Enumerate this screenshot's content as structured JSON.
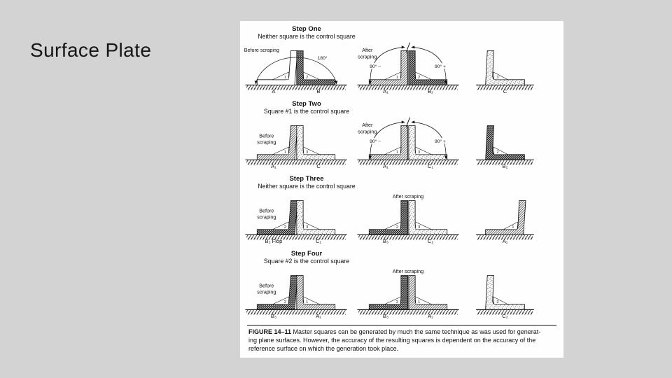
{
  "slide": {
    "title": "Surface Plate"
  },
  "colors": {
    "background": "#d3d3d3",
    "panel": "#fefefe",
    "ink": "#111111"
  },
  "figure": {
    "caption": {
      "label": "FIGURE 14–11",
      "lines": [
        "Master squares can be generated by much the same technique as was used for generat-",
        "ing plane surfaces. However, the accuracy of the resulting squares is dependent on the accuracy of the",
        "reference surface on which the generation took place."
      ]
    },
    "steps": [
      {
        "title": "Step One",
        "subtitle": "Neither square is the control square",
        "before_label_lines": [
          "Before scraping"
        ],
        "after_label_lines": [
          "After",
          "scraping"
        ],
        "arc_180": "180°",
        "arc_left": "90° −",
        "arc_right": "90° +",
        "before": {
          "left": {
            "label": "A",
            "num": "1",
            "fill": "plain"
          },
          "right": {
            "label": "B",
            "num": "2",
            "fill": "dark"
          }
        },
        "after": {
          "left": {
            "label": "A₁",
            "num": "1",
            "fill": "hatch"
          },
          "right": {
            "label": "B₂",
            "num": "2",
            "fill": "dark"
          }
        },
        "single": {
          "label": "C",
          "num": "3",
          "fill": "stipple",
          "foot": "right"
        }
      },
      {
        "title": "Step Two",
        "subtitle": "Square #1 is the control square",
        "before_label_lines": [
          "Before",
          "scraping"
        ],
        "after_label_lines": [
          "After",
          "scraping"
        ],
        "arc_left": "90° −",
        "arc_right": "90° +",
        "before": {
          "left": {
            "label": "A₁",
            "num": "1",
            "fill": "hatch"
          },
          "right": {
            "label": "C",
            "num": "3",
            "fill": "stipple"
          }
        },
        "after": {
          "left": {
            "label": "A₁",
            "num": "1",
            "fill": "hatch"
          },
          "right": {
            "label": "C₁",
            "num": "3",
            "fill": "stipple"
          }
        },
        "single": {
          "label": "B₂",
          "num": "2",
          "fill": "dark",
          "foot": "right"
        }
      },
      {
        "title": "Step Three",
        "subtitle": "Neither square is the control square",
        "before_label_lines": [
          "Before",
          "scraping"
        ],
        "after_label_lines": [
          "After scraping"
        ],
        "before": {
          "left": {
            "label": "B₂ Flop",
            "num": "2",
            "fill": "dark"
          },
          "right": {
            "label": "C₁",
            "num": "3",
            "fill": "stipple"
          }
        },
        "after": {
          "left": {
            "label": "B₃",
            "num": "2",
            "fill": "dark"
          },
          "right": {
            "label": "C₂",
            "num": "3",
            "fill": "stipple"
          }
        },
        "single": {
          "label": "A₁",
          "num": "1",
          "fill": "hatch",
          "foot": "left"
        }
      },
      {
        "title": "Step Four",
        "subtitle": "Square #2 is the control square",
        "before_label_lines": [
          "Before",
          "scraping"
        ],
        "after_label_lines": [
          "After scraping"
        ],
        "before": {
          "left": {
            "label": "B₃",
            "num": "2",
            "fill": "dark"
          },
          "right": {
            "label": "A₁",
            "num": "1",
            "fill": "hatch"
          }
        },
        "after": {
          "left": {
            "label": "B₃",
            "num": "2",
            "fill": "dark"
          },
          "right": {
            "label": "A₂",
            "num": "1",
            "fill": "hatch"
          }
        },
        "single": {
          "label": "C₂",
          "num": "3",
          "fill": "stipple",
          "foot": "right"
        }
      }
    ]
  }
}
